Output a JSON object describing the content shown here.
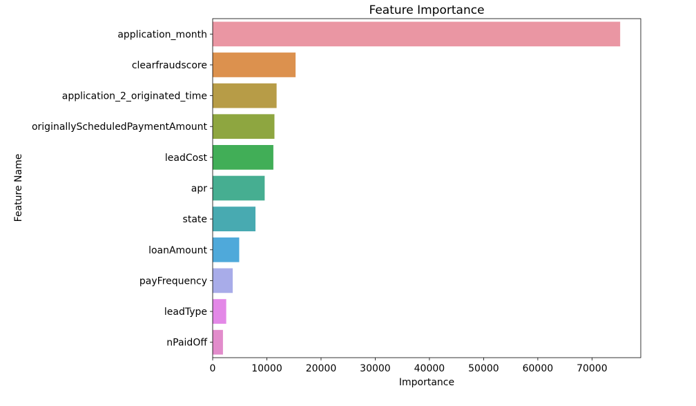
{
  "chart_data": {
    "type": "bar",
    "orientation": "horizontal",
    "title": "Feature Importance",
    "xlabel": "Importance",
    "ylabel": "Feature Name",
    "xlim": [
      0,
      79000
    ],
    "xticks": [
      0,
      10000,
      20000,
      30000,
      40000,
      50000,
      60000,
      70000
    ],
    "grid": false,
    "categories": [
      "application_month",
      "clearfraudscore",
      "application_2_originated_time",
      "originallyScheduledPaymentAmount",
      "leadCost",
      "apr",
      "state",
      "loanAmount",
      "payFrequency",
      "leadType",
      "nPaidOff"
    ],
    "values": [
      75200,
      15300,
      11800,
      11400,
      11200,
      9600,
      7900,
      4900,
      3700,
      2500,
      1900
    ],
    "colors": [
      "#ea96a3",
      "#dc914e",
      "#b79c47",
      "#8ea640",
      "#41ae57",
      "#46ae91",
      "#48aab1",
      "#4fa9da",
      "#a8ace9",
      "#e388e7",
      "#e28ccb"
    ]
  }
}
